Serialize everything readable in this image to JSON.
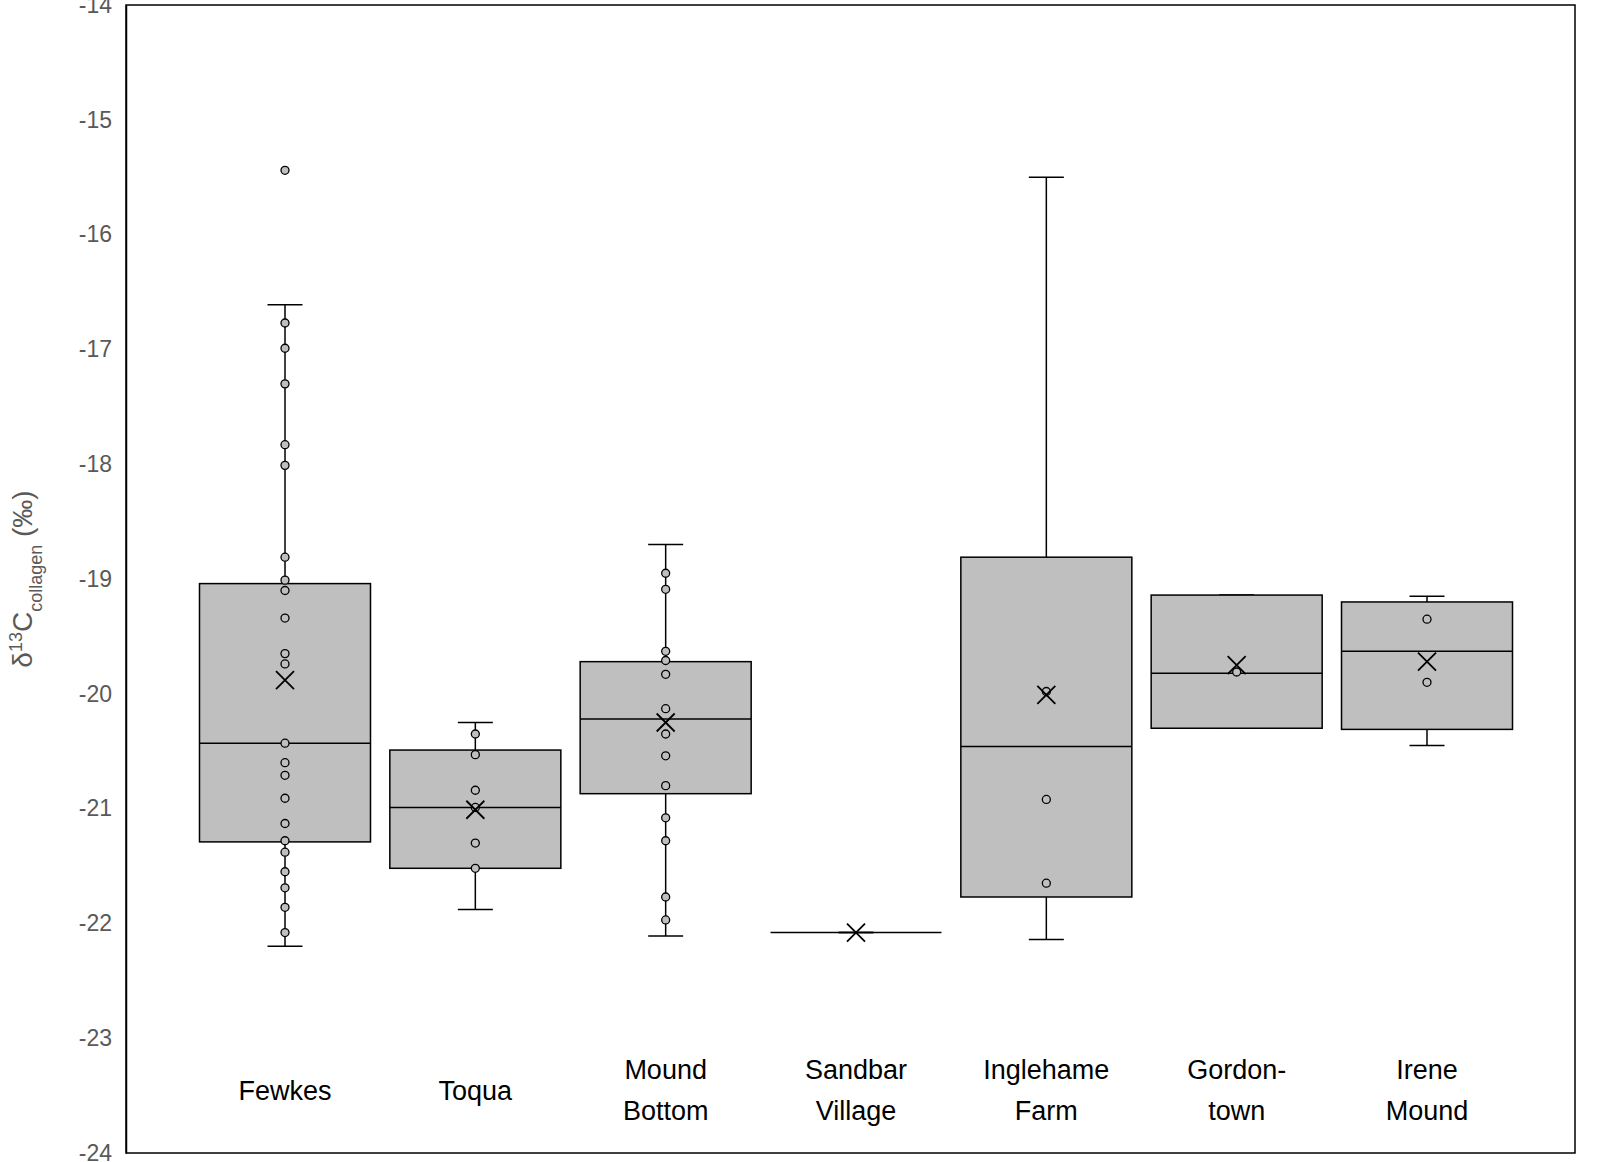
{
  "chart_data": {
    "type": "box",
    "y_label": "δ13Ccollagen (‰)",
    "ylim": [
      -24,
      -14
    ],
    "yticks": [
      -24,
      -23,
      -22,
      -21,
      -20,
      -19,
      -18,
      -17,
      -16,
      -15,
      -14
    ],
    "grid": false,
    "color": "#bfbfbf",
    "categories": [
      "Fewkes",
      "Toqua",
      "Mound\nBottom",
      "Sandbar\nVillage",
      "Inglehame\nFarm",
      "Gordon-\ntown",
      "Irene\nMound"
    ],
    "boxes": [
      {
        "min": -22.2,
        "q1": -21.29,
        "median": -20.43,
        "q3": -19.04,
        "max": -16.61,
        "mean": -19.88,
        "points": [
          -16.77,
          -16.99,
          -17.3,
          -17.83,
          -18.01,
          -18.81,
          -19.01,
          -19.1,
          -19.34,
          -19.65,
          -19.74,
          -20.43,
          -20.6,
          -20.71,
          -20.91,
          -21.13,
          -21.28,
          -21.38,
          -21.55,
          -21.69,
          -21.86,
          -22.08
        ],
        "outliers": [
          -15.44
        ]
      },
      {
        "min": -21.88,
        "q1": -21.52,
        "median": -20.99,
        "q3": -20.49,
        "max": -20.25,
        "mean": -21.01,
        "points": [
          -20.35,
          -20.53,
          -20.84,
          -20.99,
          -21.3,
          -21.52
        ],
        "outliers": []
      },
      {
        "min": -22.11,
        "q1": -20.87,
        "median": -20.22,
        "q3": -19.72,
        "max": -18.7,
        "mean": -20.25,
        "points": [
          -18.95,
          -19.09,
          -19.63,
          -19.71,
          -19.83,
          -20.13,
          -20.35,
          -20.54,
          -20.8,
          -21.08,
          -21.28,
          -21.77,
          -21.97
        ],
        "outliers": []
      },
      {
        "min": -22.08,
        "q1": -22.08,
        "median": -22.08,
        "q3": -22.08,
        "max": -22.08,
        "mean": -22.08,
        "points": [],
        "outliers": []
      },
      {
        "min": -22.14,
        "q1": -21.77,
        "median": -20.46,
        "q3": -18.81,
        "max": -15.5,
        "mean": -20.01,
        "points": [
          -19.98,
          -20.92,
          -21.65
        ],
        "outliers": []
      },
      {
        "min": -20.3,
        "q1": -20.3,
        "median": -19.82,
        "q3": -19.14,
        "max": -19.14,
        "mean": -19.75,
        "points": [
          -19.81
        ],
        "outliers": []
      },
      {
        "min": -20.45,
        "q1": -20.31,
        "median": -19.63,
        "q3": -19.2,
        "max": -19.15,
        "mean": -19.72,
        "points": [
          -19.35,
          -19.9
        ],
        "outliers": []
      }
    ]
  }
}
